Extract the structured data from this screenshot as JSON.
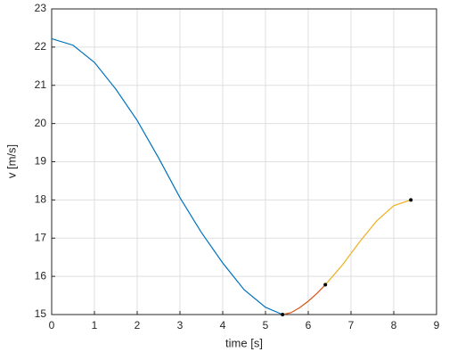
{
  "chart_data": {
    "type": "line",
    "xlabel": "time [s]",
    "ylabel": "v [m/s]",
    "xlim": [
      0,
      9
    ],
    "xticks": [
      0,
      1,
      2,
      3,
      4,
      5,
      6,
      7,
      8,
      9
    ],
    "ylim": [
      15,
      23
    ],
    "yticks": [
      15,
      16,
      17,
      18,
      19,
      20,
      21,
      22,
      23
    ],
    "grid": true,
    "series": [
      {
        "color": "#0072bd",
        "line": true,
        "x": [
          0,
          0.5,
          1,
          1.5,
          2,
          2.5,
          3,
          3.5,
          4,
          4.5,
          5,
          5.4
        ],
        "values": [
          22.22,
          22.05,
          21.6,
          20.9,
          20.08,
          19.1,
          18.06,
          17.15,
          16.35,
          15.65,
          15.19,
          15.0
        ]
      },
      {
        "color": "#d95319",
        "line": true,
        "x": [
          5.4,
          5.6,
          5.8,
          6.0,
          6.2,
          6.4
        ],
        "values": [
          15.0,
          15.05,
          15.18,
          15.35,
          15.55,
          15.78
        ]
      },
      {
        "color": "#edb120",
        "line": true,
        "x": [
          6.4,
          6.8,
          7.2,
          7.6,
          8.0,
          8.4
        ],
        "values": [
          15.78,
          16.3,
          16.9,
          17.45,
          17.85,
          18.0
        ]
      },
      {
        "color": "#000000",
        "line": false,
        "x": [
          5.4,
          6.4,
          8.4
        ],
        "values": [
          15.0,
          15.78,
          18.0
        ]
      }
    ]
  }
}
